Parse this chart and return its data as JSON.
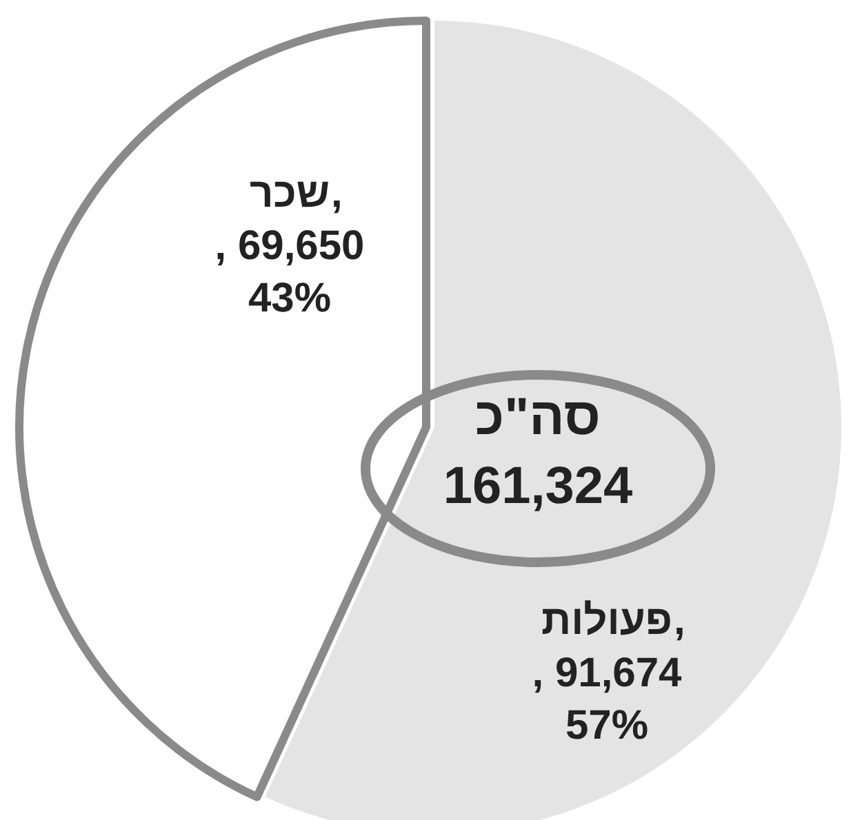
{
  "chart_data": {
    "type": "pie",
    "categories": [
      "שכר",
      "פעולות"
    ],
    "values": [
      69650,
      91674
    ],
    "colors": [
      "#ffffff",
      "#e4e4e4"
    ],
    "value_labels": [
      ", 69,650",
      ", 91,674"
    ],
    "annotations": [
      "43%",
      "57%",
      "סה\"כ",
      "161,324",
      ",",
      ","
    ]
  }
}
